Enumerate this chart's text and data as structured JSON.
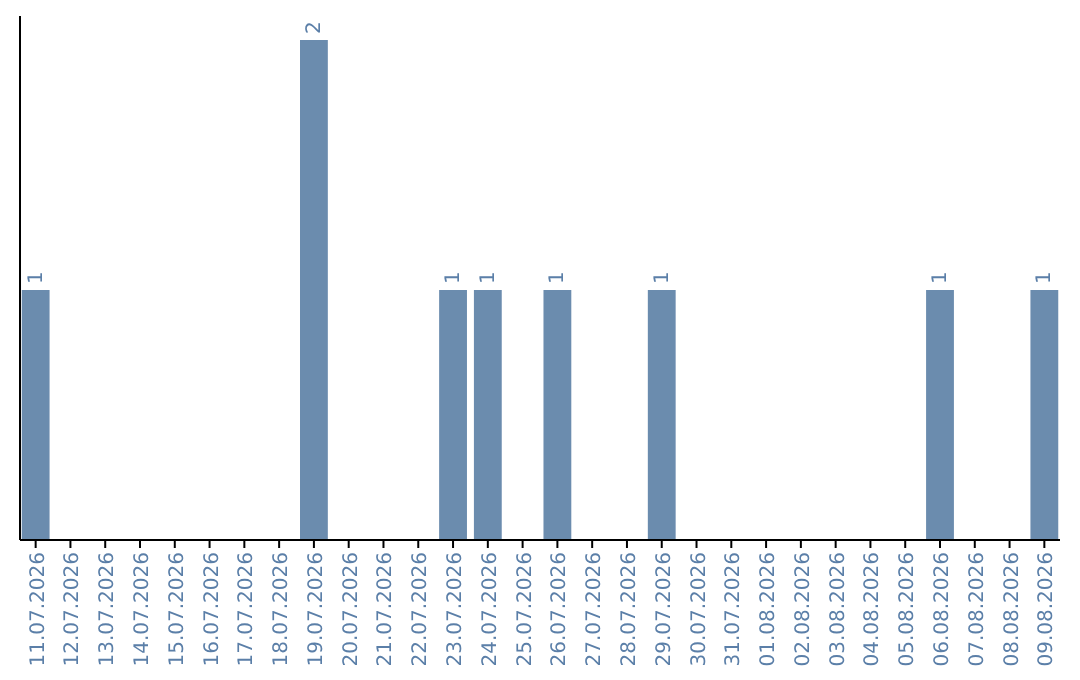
{
  "chart_data": {
    "type": "bar",
    "categories": [
      "11.07.2026",
      "12.07.2026",
      "13.07.2026",
      "14.07.2026",
      "15.07.2026",
      "16.07.2026",
      "17.07.2026",
      "18.07.2026",
      "19.07.2026",
      "20.07.2026",
      "21.07.2026",
      "22.07.2026",
      "23.07.2026",
      "24.07.2026",
      "25.07.2026",
      "26.07.2026",
      "27.07.2026",
      "28.07.2026",
      "29.07.2026",
      "30.07.2026",
      "31.07.2026",
      "01.08.2026",
      "02.08.2026",
      "03.08.2026",
      "04.08.2026",
      "05.08.2026",
      "06.08.2026",
      "07.08.2026",
      "08.08.2026",
      "09.08.2026"
    ],
    "values": [
      1,
      0,
      0,
      0,
      0,
      0,
      0,
      0,
      2,
      0,
      0,
      0,
      1,
      1,
      0,
      1,
      0,
      0,
      1,
      0,
      0,
      0,
      0,
      0,
      0,
      0,
      1,
      0,
      0,
      1
    ],
    "value_labels": [
      "1",
      null,
      null,
      null,
      null,
      null,
      null,
      null,
      "2",
      null,
      null,
      null,
      "1",
      "1",
      null,
      "1",
      null,
      null,
      "1",
      null,
      null,
      null,
      null,
      null,
      null,
      null,
      "1",
      null,
      null,
      "1"
    ],
    "color": "#6b8cae",
    "ylim": [
      0,
      2
    ],
    "tick_labels": "x"
  }
}
